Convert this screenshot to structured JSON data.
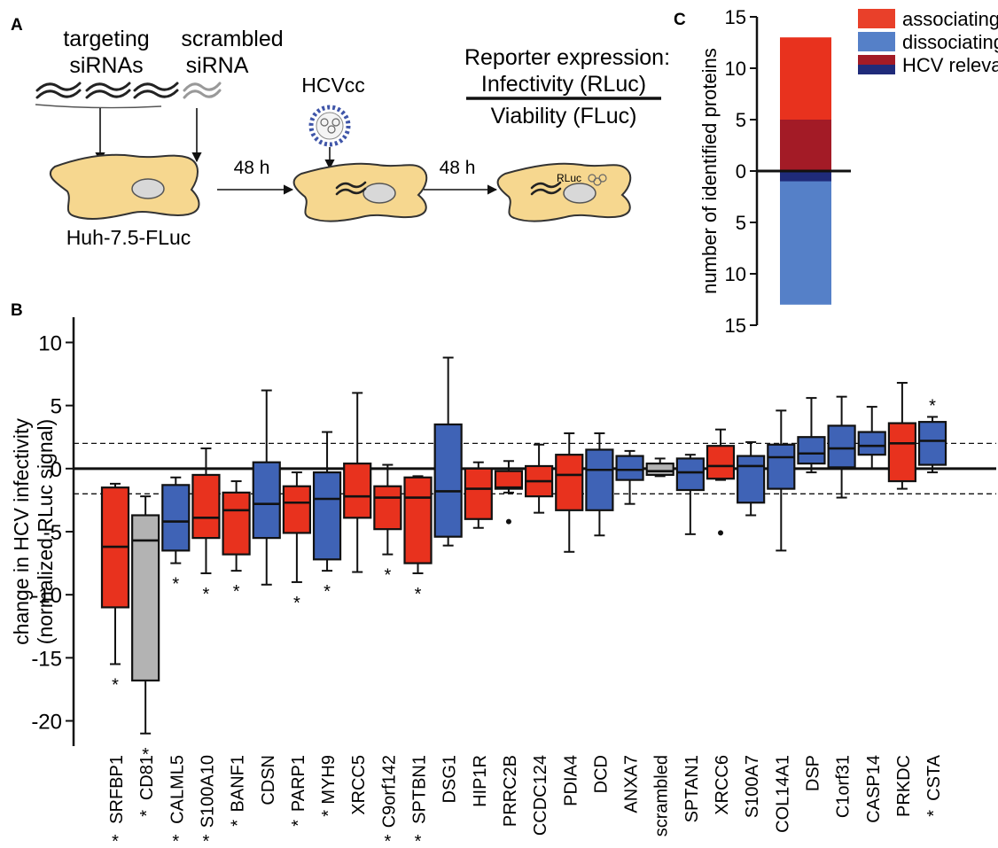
{
  "colors": {
    "associating": "#e8321e",
    "dissociating": "#3f63b6",
    "hcv_assoc": "#a31b26",
    "hcv_dissoc": "#1f2b7a",
    "control": "#b3b3b3",
    "legend_assoc": "#e9402a",
    "legend_dissoc": "#5580c8",
    "cell": "#f6d78f"
  },
  "panel_a": {
    "label": "A",
    "targeting": [
      "targeting",
      "siRNAs"
    ],
    "scrambled": [
      "scrambled",
      "siRNA"
    ],
    "virus": "HCVcc",
    "cell_line": "Huh-7.5-FLuc",
    "time1": "48 h",
    "time2": "48 h",
    "reporter_title": "Reporter expression:",
    "numerator": "Infectivity (RLuc)",
    "denominator": "Viability (FLuc)",
    "rluc_tag": "RLuc"
  },
  "chart_data": [
    {
      "type": "bar",
      "panel": "C",
      "ylabel": "number of identified proteins",
      "ylim": [
        -15,
        15
      ],
      "yticks": [
        15,
        10,
        5,
        0,
        5,
        10,
        15
      ],
      "legend": [
        "associating",
        "dissociating",
        "HCV relevant"
      ],
      "legend_position": "top-right",
      "series": [
        {
          "name": "associating",
          "value": 13
        },
        {
          "name": "dissociating",
          "value": -13
        },
        {
          "name": "HCV relevant",
          "values": [
            5,
            -1
          ]
        }
      ]
    },
    {
      "type": "box",
      "panel": "B",
      "ylabel": [
        "change in HCV infectivity",
        "(normalized RLuc signal)"
      ],
      "ylim": [
        -22,
        12
      ],
      "yticks": [
        10,
        5,
        0,
        -5,
        -10,
        -15,
        -20
      ],
      "threshold_lines": [
        2,
        -2
      ],
      "categories": [
        "SRFBP1",
        "CD81",
        "CALML5",
        "S100A10",
        "BANF1",
        "CDSN",
        "PARP1",
        "MYH9",
        "XRCC5",
        "C9orf142",
        "SPTBN1",
        "DSG1",
        "HIP1R",
        "PRRC2B",
        "CCDC124",
        "PDIA4",
        "DCD",
        "ANXA7",
        "scrambled",
        "SPTAN1",
        "XRCC6",
        "S100A7",
        "COL14A1",
        "DSP",
        "C1orf31",
        "CASP14",
        "PRKDC",
        "CSTA"
      ],
      "groups": [
        "assoc",
        "control",
        "dissoc",
        "assoc",
        "assoc",
        "dissoc",
        "assoc",
        "dissoc",
        "assoc",
        "assoc",
        "assoc",
        "dissoc",
        "assoc",
        "assoc",
        "assoc",
        "assoc",
        "dissoc",
        "dissoc",
        "control",
        "dissoc",
        "assoc",
        "dissoc",
        "dissoc",
        "dissoc",
        "dissoc",
        "dissoc",
        "assoc",
        "dissoc"
      ],
      "boxes": [
        [
          -15.5,
          -11,
          -6.2,
          -1.5,
          -1.2
        ],
        [
          -21,
          -16.8,
          -5.7,
          -3.7,
          -2.2
        ],
        [
          -7.5,
          -6.5,
          -4.2,
          -1.3,
          -0.7
        ],
        [
          -8.3,
          -5.5,
          -3.9,
          -0.5,
          1.6
        ],
        [
          -8.1,
          -6.8,
          -3.3,
          -1.9,
          -1
        ],
        [
          -9.2,
          -5.5,
          -2.8,
          0.5,
          6.2
        ],
        [
          -9,
          -5.1,
          -2.7,
          -1.4,
          -0.3
        ],
        [
          -8.1,
          -7.2,
          -2.4,
          -0.3,
          2.9
        ],
        [
          -8.2,
          -3.9,
          -2.2,
          0.4,
          6
        ],
        [
          -6.8,
          -4.8,
          -2.3,
          -1.4,
          0.3
        ],
        [
          -8.3,
          -7.5,
          -2.3,
          -0.7,
          -0.6
        ],
        [
          -6.1,
          -5.4,
          -1.8,
          3.5,
          8.8
        ],
        [
          -4.7,
          -4,
          -1.6,
          0,
          0.5
        ],
        [
          -1.9,
          -1.6,
          -1.5,
          -0.2,
          0.6
        ],
        [
          -3.5,
          -2.2,
          -1,
          0.2,
          1.9
        ],
        [
          -6.6,
          -3.3,
          -0.5,
          1.1,
          2.8
        ],
        [
          -5.3,
          -3.3,
          -0.1,
          1.5,
          2.8
        ],
        [
          -2.8,
          -0.9,
          -0.1,
          1,
          1.4
        ],
        [
          -0.6,
          -0.5,
          -0.2,
          0.4,
          0.8
        ],
        [
          -5.2,
          -1.7,
          -0.3,
          0.8,
          1.1
        ],
        [
          -0.9,
          -0.8,
          0.2,
          1.8,
          3.1
        ],
        [
          -3.7,
          -2.7,
          0.2,
          1,
          2.1
        ],
        [
          -6.5,
          -1.6,
          0.9,
          1.9,
          4.6
        ],
        [
          -0.3,
          0.4,
          1.2,
          2.5,
          5.6
        ],
        [
          -2.3,
          0.1,
          1.6,
          3.4,
          5.7
        ],
        [
          0,
          1.1,
          1.8,
          2.9,
          4.9
        ],
        [
          -1.6,
          -1,
          2,
          3.6,
          6.8
        ],
        [
          -0.3,
          0.3,
          2.2,
          3.7,
          4.1
        ]
      ],
      "outliers": [
        [
          13,
          -4.2
        ],
        [
          20,
          -5.1
        ]
      ],
      "sig_below_box": [
        0,
        1,
        2,
        3,
        4,
        6,
        7,
        9,
        10
      ],
      "sig_above_box": [
        27
      ],
      "sig_before_label": [
        1,
        4,
        6,
        7,
        27
      ],
      "sig_below_label": [
        0,
        2,
        3,
        9,
        10
      ],
      "star": "*"
    }
  ]
}
